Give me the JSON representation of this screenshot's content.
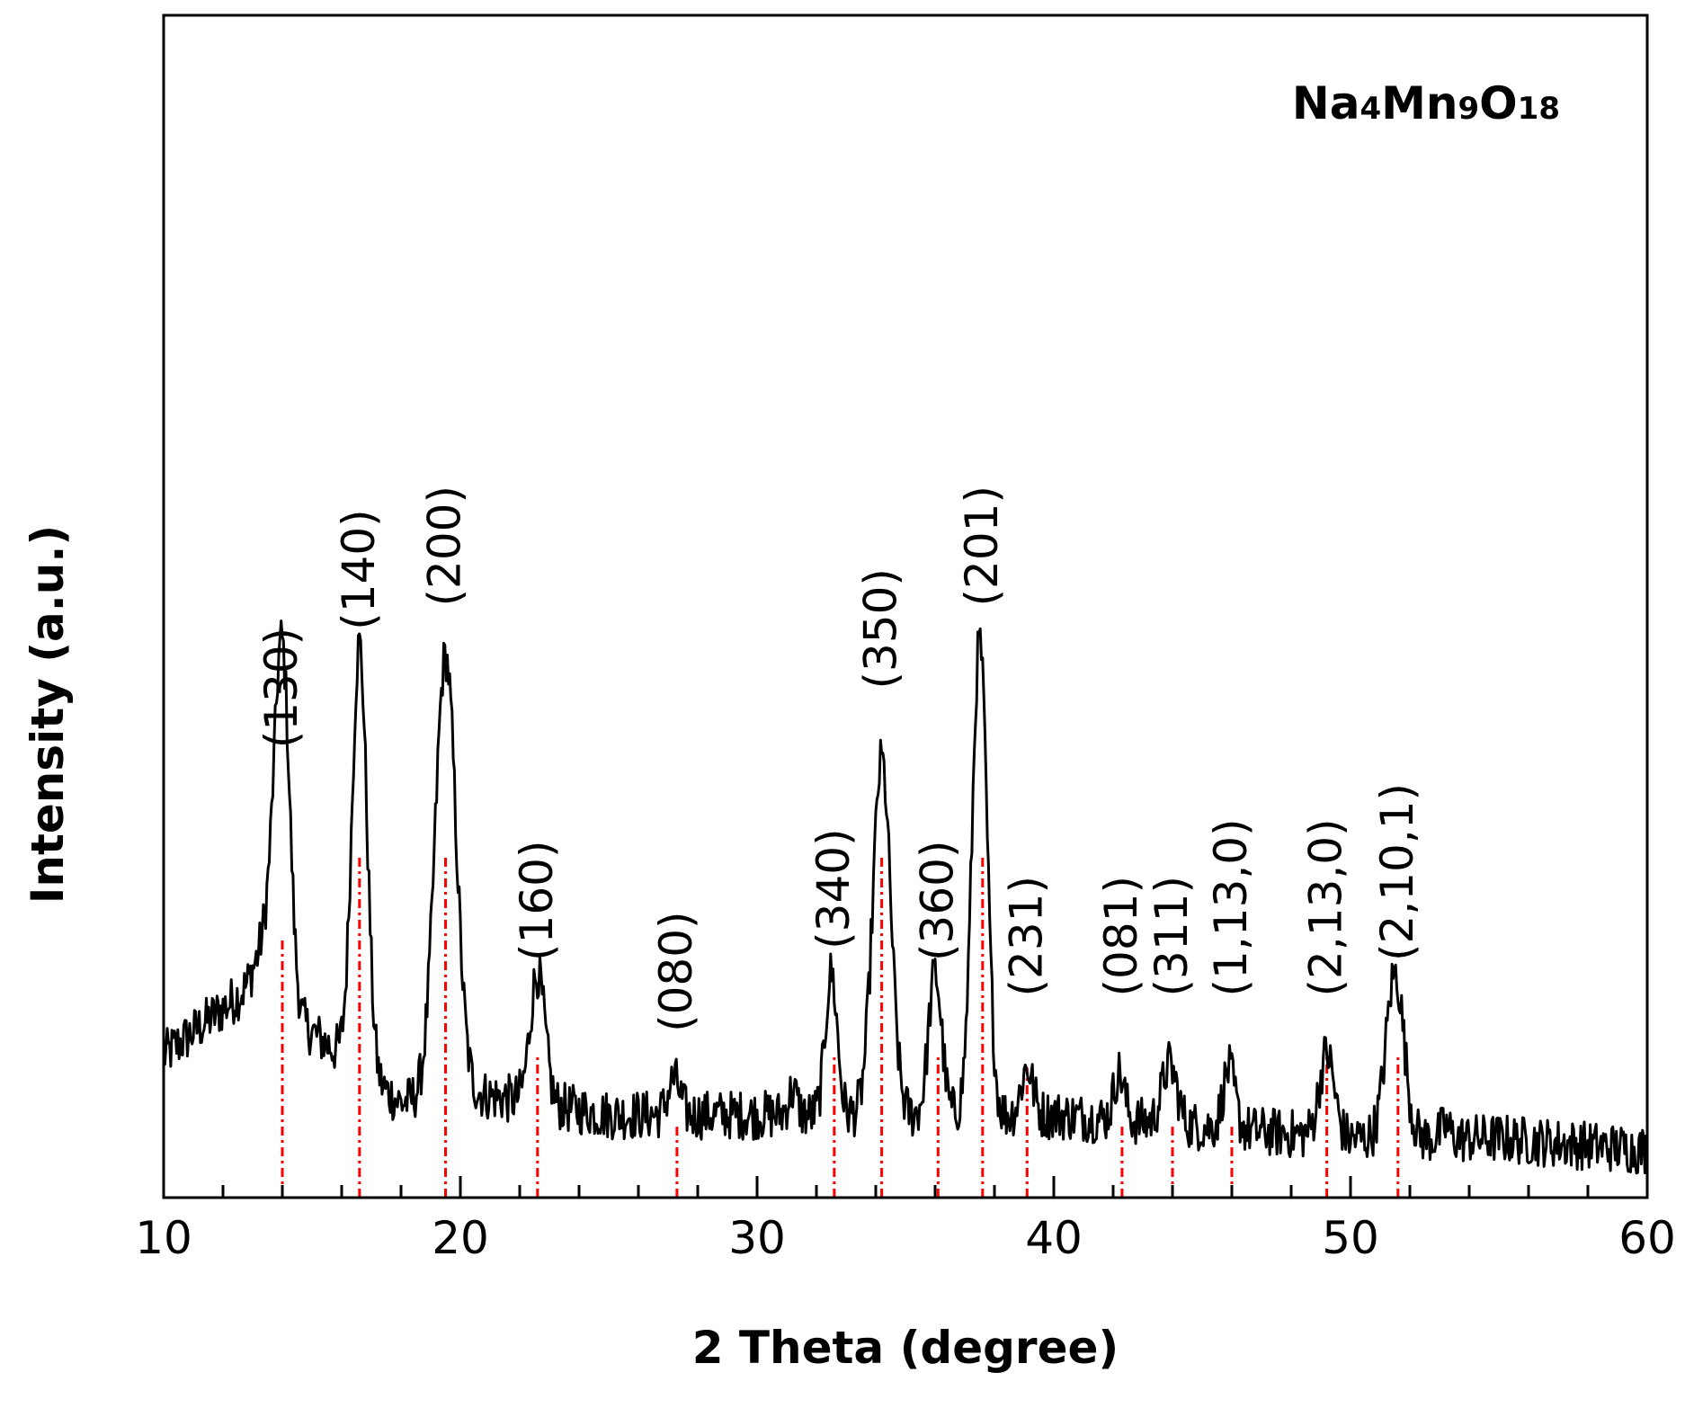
{
  "chart_data": {
    "type": "line",
    "title": "",
    "annotation": {
      "parts": [
        {
          "text": "Na",
          "sub": false
        },
        {
          "text": "4",
          "sub": true
        },
        {
          "text": "Mn",
          "sub": false
        },
        {
          "text": "9",
          "sub": true
        },
        {
          "text": "O",
          "sub": false
        },
        {
          "text": "18",
          "sub": true
        }
      ],
      "position": "top-right"
    },
    "xlabel": "2 Theta (degree)",
    "ylabel": "Intensity (a.u.)",
    "xlim": [
      10,
      60
    ],
    "ylim": [
      0,
      100
    ],
    "xticks": [
      10,
      20,
      30,
      40,
      50,
      60
    ],
    "xtick_labels": [
      "10",
      "20",
      "30",
      "40",
      "50",
      "60"
    ],
    "yticks_shown": false,
    "grid": false,
    "series": [
      {
        "color": "#000000",
        "baseline": [
          [
            10,
            12
          ],
          [
            13,
            18
          ],
          [
            15,
            14
          ],
          [
            18,
            8
          ],
          [
            20,
            9
          ],
          [
            25,
            7
          ],
          [
            30,
            7
          ],
          [
            35,
            7
          ],
          [
            40,
            7
          ],
          [
            45,
            6
          ],
          [
            50,
            5
          ],
          [
            55,
            5
          ],
          [
            60,
            4
          ]
        ],
        "peaks": [
          {
            "center": 13.6,
            "height": 6,
            "width": 0.35
          },
          {
            "center": 14.0,
            "height": 28,
            "width": 0.25
          },
          {
            "center": 16.6,
            "height": 36,
            "width": 0.25
          },
          {
            "center": 19.5,
            "height": 37,
            "width": 0.35
          },
          {
            "center": 22.6,
            "height": 11,
            "width": 0.25
          },
          {
            "center": 27.2,
            "height": 3,
            "width": 0.2
          },
          {
            "center": 31.2,
            "height": 2,
            "width": 0.15
          },
          {
            "center": 32.5,
            "height": 12,
            "width": 0.2
          },
          {
            "center": 34.2,
            "height": 30,
            "width": 0.3
          },
          {
            "center": 36.0,
            "height": 12,
            "width": 0.22
          },
          {
            "center": 37.5,
            "height": 40,
            "width": 0.25
          },
          {
            "center": 39.1,
            "height": 4,
            "width": 0.2
          },
          {
            "center": 42.2,
            "height": 4,
            "width": 0.18
          },
          {
            "center": 43.9,
            "height": 5,
            "width": 0.25
          },
          {
            "center": 45.9,
            "height": 5,
            "width": 0.2
          },
          {
            "center": 49.2,
            "height": 7,
            "width": 0.25
          },
          {
            "center": 51.5,
            "height": 14,
            "width": 0.3
          },
          {
            "center": 53.2,
            "height": 1,
            "width": 0.15
          }
        ]
      }
    ],
    "reference_lines": {
      "color": "#ff0000",
      "style": "dash-dot",
      "lines": [
        {
          "x": 14.0,
          "height": 22
        },
        {
          "x": 16.6,
          "height": 29
        },
        {
          "x": 19.5,
          "height": 29
        },
        {
          "x": 22.6,
          "height": 12
        },
        {
          "x": 27.3,
          "height": 6
        },
        {
          "x": 32.6,
          "height": 12
        },
        {
          "x": 34.2,
          "height": 29
        },
        {
          "x": 36.1,
          "height": 12
        },
        {
          "x": 37.6,
          "height": 29
        },
        {
          "x": 39.1,
          "height": 11
        },
        {
          "x": 42.3,
          "height": 6
        },
        {
          "x": 44.0,
          "height": 6
        },
        {
          "x": 46.0,
          "height": 6
        },
        {
          "x": 49.2,
          "height": 12
        },
        {
          "x": 51.6,
          "height": 12
        }
      ]
    },
    "peak_labels": [
      {
        "text": "(130)",
        "x": 14.0,
        "y": 38
      },
      {
        "text": "(140)",
        "x": 16.6,
        "y": 48
      },
      {
        "text": "(200)",
        "x": 19.5,
        "y": 50
      },
      {
        "text": "(160)",
        "x": 22.6,
        "y": 20
      },
      {
        "text": "(080)",
        "x": 27.3,
        "y": 14
      },
      {
        "text": "(340)",
        "x": 32.6,
        "y": 21
      },
      {
        "text": "(350)",
        "x": 34.2,
        "y": 43
      },
      {
        "text": "(360)",
        "x": 36.1,
        "y": 20
      },
      {
        "text": "(201)",
        "x": 37.6,
        "y": 50
      },
      {
        "text": "(231)",
        "x": 39.1,
        "y": 17
      },
      {
        "text": "(081)",
        "x": 42.3,
        "y": 17
      },
      {
        "text": "(311)",
        "x": 44.0,
        "y": 17
      },
      {
        "text": "(1,13,0)",
        "x": 46.0,
        "y": 17
      },
      {
        "text": "(2,13,0)",
        "x": 49.2,
        "y": 17
      },
      {
        "text": "(2,10,1)",
        "x": 51.6,
        "y": 20
      }
    ]
  }
}
